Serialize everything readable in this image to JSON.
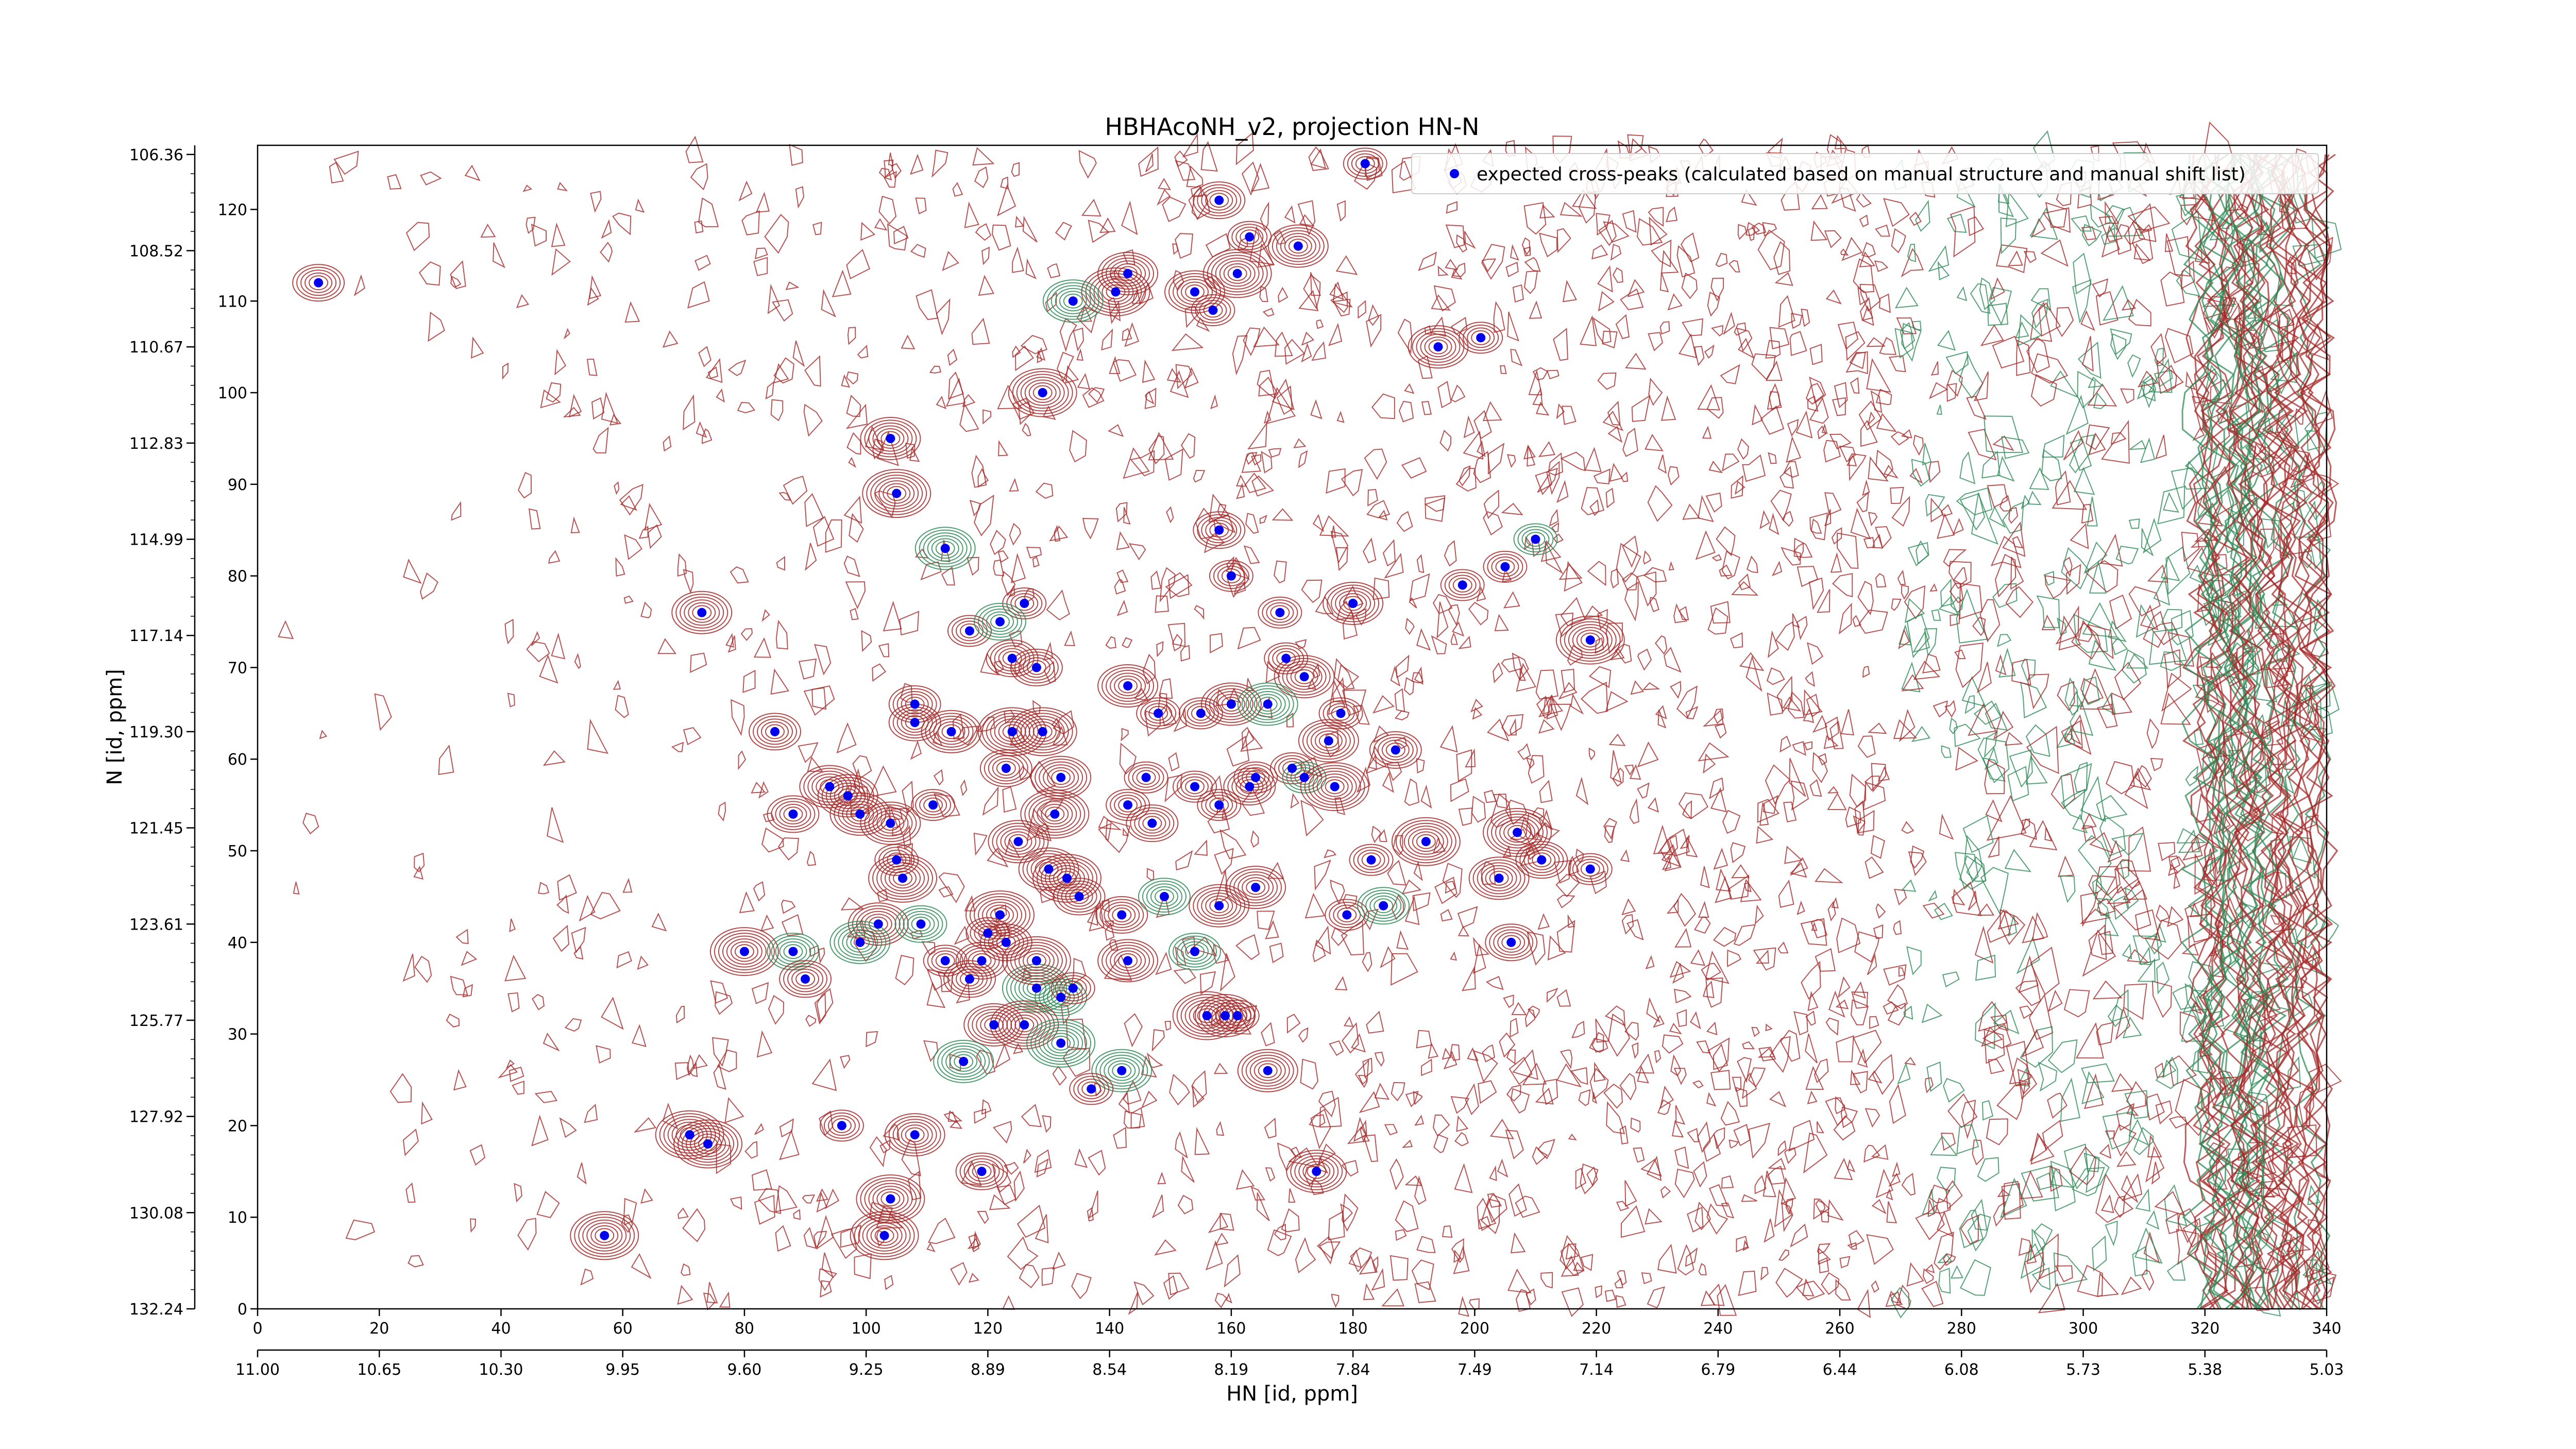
{
  "chart_data": {
    "type": "scatter",
    "title": "HBHAcoNH_v2, projection HN-N",
    "xlabel_bottom": "HN [id, ppm]",
    "ylabel_left": "N [id, ppm]",
    "x_index_range": [
      0,
      340
    ],
    "y_index_range": [
      0,
      127
    ],
    "x_index_ticks": [
      "0",
      "20",
      "40",
      "60",
      "80",
      "100",
      "120",
      "140",
      "160",
      "180",
      "200",
      "220",
      "240",
      "260",
      "280",
      "300",
      "320",
      "340"
    ],
    "y_index_ticks": [
      "0",
      "10",
      "20",
      "30",
      "40",
      "50",
      "60",
      "70",
      "80",
      "90",
      "100",
      "110",
      "120"
    ],
    "x_ppm_ticks": [
      "11.00",
      "10.65",
      "10.30",
      "9.95",
      "9.60",
      "9.25",
      "8.89",
      "8.54",
      "8.19",
      "7.84",
      "7.49",
      "7.14",
      "6.79",
      "6.44",
      "6.08",
      "5.73",
      "5.38",
      "5.03"
    ],
    "y_ppm_ticks": [
      "132.24",
      "130.08",
      "127.92",
      "125.77",
      "123.61",
      "121.45",
      "119.30",
      "117.14",
      "114.99",
      "112.83",
      "110.67",
      "108.52",
      "106.36"
    ],
    "legend": {
      "placement": "top-right",
      "label": "expected cross-peaks (calculated based on manual structure and manual shift list)"
    },
    "grid": false,
    "colors": {
      "peak_marker": "#0000ee",
      "positive_contour": "#a52a2a",
      "negative_contour": "#2e8b57"
    },
    "expected_peaks": [
      [
        10,
        112
      ],
      [
        182,
        125
      ],
      [
        158,
        121
      ],
      [
        163,
        117
      ],
      [
        171,
        116
      ],
      [
        143,
        113
      ],
      [
        141,
        111
      ],
      [
        134,
        110
      ],
      [
        154,
        111
      ],
      [
        161,
        113
      ],
      [
        157,
        109
      ],
      [
        194,
        105
      ],
      [
        201,
        106
      ],
      [
        129,
        100
      ],
      [
        104,
        95
      ],
      [
        105,
        89
      ],
      [
        158,
        85
      ],
      [
        113,
        83
      ],
      [
        160,
        80
      ],
      [
        198,
        79
      ],
      [
        205,
        81
      ],
      [
        210,
        84
      ],
      [
        73,
        76
      ],
      [
        117,
        74
      ],
      [
        126,
        77
      ],
      [
        122,
        75
      ],
      [
        168,
        76
      ],
      [
        180,
        77
      ],
      [
        219,
        73
      ],
      [
        124,
        71
      ],
      [
        128,
        70
      ],
      [
        143,
        68
      ],
      [
        169,
        71
      ],
      [
        172,
        69
      ],
      [
        148,
        65
      ],
      [
        155,
        65
      ],
      [
        160,
        66
      ],
      [
        166,
        66
      ],
      [
        178,
        65
      ],
      [
        85,
        63
      ],
      [
        108,
        66
      ],
      [
        108,
        64
      ],
      [
        114,
        63
      ],
      [
        124,
        63
      ],
      [
        129,
        63
      ],
      [
        176,
        62
      ],
      [
        187,
        61
      ],
      [
        94,
        57
      ],
      [
        97,
        56
      ],
      [
        123,
        59
      ],
      [
        132,
        58
      ],
      [
        146,
        58
      ],
      [
        170,
        59
      ],
      [
        164,
        58
      ],
      [
        163,
        57
      ],
      [
        154,
        57
      ],
      [
        158,
        55
      ],
      [
        172,
        58
      ],
      [
        177,
        57
      ],
      [
        88,
        54
      ],
      [
        99,
        54
      ],
      [
        104,
        53
      ],
      [
        111,
        55
      ],
      [
        131,
        54
      ],
      [
        143,
        55
      ],
      [
        147,
        53
      ],
      [
        125,
        51
      ],
      [
        192,
        51
      ],
      [
        207,
        52
      ],
      [
        183,
        49
      ],
      [
        105,
        49
      ],
      [
        130,
        48
      ],
      [
        133,
        47
      ],
      [
        106,
        47
      ],
      [
        204,
        47
      ],
      [
        219,
        48
      ],
      [
        211,
        49
      ],
      [
        135,
        45
      ],
      [
        142,
        43
      ],
      [
        149,
        45
      ],
      [
        158,
        44
      ],
      [
        164,
        46
      ],
      [
        179,
        43
      ],
      [
        185,
        44
      ],
      [
        102,
        42
      ],
      [
        109,
        42
      ],
      [
        120,
        41
      ],
      [
        122,
        43
      ],
      [
        123,
        40
      ],
      [
        80,
        39
      ],
      [
        88,
        39
      ],
      [
        90,
        36
      ],
      [
        99,
        40
      ],
      [
        113,
        38
      ],
      [
        117,
        36
      ],
      [
        119,
        38
      ],
      [
        128,
        35
      ],
      [
        132,
        34
      ],
      [
        134,
        35
      ],
      [
        126,
        31
      ],
      [
        121,
        31
      ],
      [
        132,
        29
      ],
      [
        156,
        32
      ],
      [
        159,
        32
      ],
      [
        161,
        32
      ],
      [
        128,
        38
      ],
      [
        143,
        38
      ],
      [
        154,
        39
      ],
      [
        206,
        40
      ],
      [
        116,
        27
      ],
      [
        142,
        26
      ],
      [
        166,
        26
      ],
      [
        137,
        24
      ],
      [
        71,
        19
      ],
      [
        74,
        18
      ],
      [
        96,
        20
      ],
      [
        108,
        19
      ],
      [
        119,
        15
      ],
      [
        174,
        15
      ],
      [
        104,
        12
      ],
      [
        103,
        8
      ],
      [
        57,
        8
      ]
    ]
  }
}
